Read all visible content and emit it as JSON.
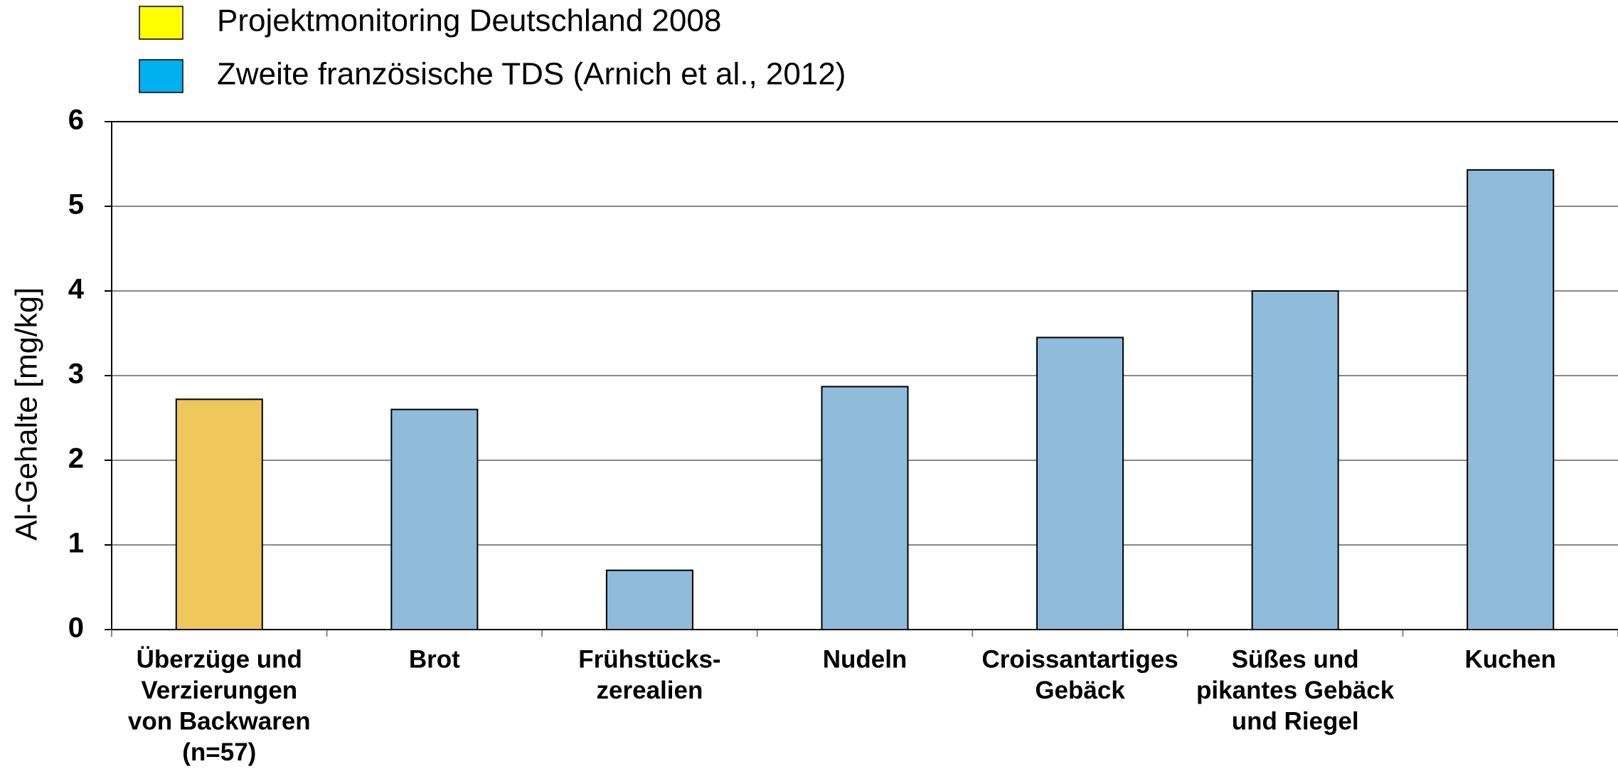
{
  "chart_data": {
    "type": "bar",
    "ylabel": "Al-Gehalte [mg/kg]",
    "categories": [
      [
        "Überzüge und",
        "Verzierungen",
        "von Backwaren",
        "(n=57)"
      ],
      [
        "Brot"
      ],
      [
        "Frühstücks-",
        "zerealien"
      ],
      [
        "Nudeln"
      ],
      [
        "Croissantartiges",
        "Gebäck"
      ],
      [
        "Süßes und",
        "pikantes Gebäck",
        "und Riegel"
      ],
      [
        "Kuchen"
      ]
    ],
    "series": [
      {
        "name": "Projektmonitoring Deutschland 2008",
        "legend_color": "#ffff00",
        "color": "#f0c75a",
        "values": [
          2.72,
          null,
          null,
          null,
          null,
          null,
          null
        ]
      },
      {
        "name": "Zweite französische TDS (Arnich et al., 2012)",
        "legend_color": "#00b0f0",
        "color": "#8fbcdb",
        "values": [
          null,
          2.6,
          0.7,
          2.87,
          3.45,
          4.0,
          5.43
        ]
      }
    ],
    "ylim": [
      0,
      6
    ],
    "yticks": [
      0,
      1,
      2,
      3,
      4,
      5,
      6
    ],
    "grid": true,
    "legend": "top-left"
  }
}
